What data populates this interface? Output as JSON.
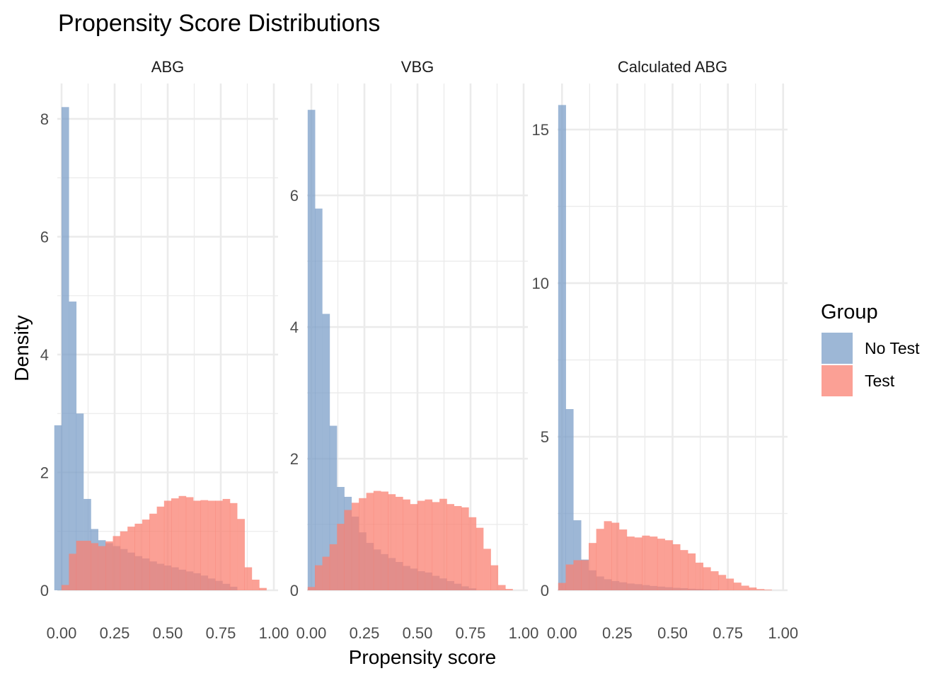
{
  "title": "Propensity Score Distributions",
  "xlabel": "Propensity score",
  "ylabel": "Density",
  "legend": {
    "title": "Group",
    "placement": "right",
    "items": [
      {
        "label": "No Test",
        "color": "#7c9fc8"
      },
      {
        "label": "Test",
        "color": "#fa8072"
      }
    ]
  },
  "colors": {
    "no_test": "#7c9fc8",
    "test": "#fa8072",
    "grid": "#ebebeb",
    "text": "#4d4d4d"
  },
  "chart_data": {
    "type": "bar",
    "layout": "facets",
    "bin_width": 0.0345,
    "x_ticks": [
      "0.00",
      "0.25",
      "0.50",
      "0.75",
      "1.00"
    ],
    "facets": [
      {
        "title": "ABG",
        "xlim": [
          -0.02,
          1.02
        ],
        "ylim": [
          0,
          8.6
        ],
        "y_ticks": [
          0,
          2,
          4,
          6,
          8
        ],
        "series": [
          {
            "name": "No Test",
            "x": [
              -0.017,
              0.017,
              0.052,
              0.086,
              0.121,
              0.155,
              0.19,
              0.224,
              0.259,
              0.293,
              0.328,
              0.362,
              0.397,
              0.431,
              0.466,
              0.5,
              0.534,
              0.569,
              0.603,
              0.638,
              0.672,
              0.707,
              0.741,
              0.776,
              0.81
            ],
            "values": [
              2.8,
              8.2,
              4.9,
              3.0,
              1.55,
              1.04,
              0.85,
              0.8,
              0.75,
              0.7,
              0.64,
              0.58,
              0.54,
              0.49,
              0.45,
              0.42,
              0.39,
              0.35,
              0.32,
              0.29,
              0.25,
              0.2,
              0.16,
              0.11,
              0.06
            ]
          },
          {
            "name": "Test",
            "x": [
              0.017,
              0.052,
              0.086,
              0.121,
              0.155,
              0.19,
              0.224,
              0.259,
              0.293,
              0.328,
              0.362,
              0.397,
              0.431,
              0.466,
              0.5,
              0.534,
              0.569,
              0.603,
              0.638,
              0.672,
              0.707,
              0.741,
              0.776,
              0.81,
              0.845,
              0.879,
              0.914,
              0.948
            ],
            "values": [
              0.09,
              0.62,
              0.84,
              0.84,
              0.8,
              0.75,
              0.83,
              0.92,
              1.0,
              1.08,
              1.13,
              1.2,
              1.3,
              1.42,
              1.52,
              1.56,
              1.6,
              1.58,
              1.52,
              1.53,
              1.52,
              1.52,
              1.55,
              1.48,
              1.21,
              0.39,
              0.18,
              0.04
            ]
          }
        ]
      },
      {
        "title": "VBG",
        "xlim": [
          -0.02,
          1.02
        ],
        "ylim": [
          0,
          7.7
        ],
        "y_ticks": [
          0,
          2,
          4,
          6
        ],
        "series": [
          {
            "name": "No Test",
            "x": [
              0.0,
              0.034,
              0.069,
              0.103,
              0.138,
              0.172,
              0.207,
              0.241,
              0.276,
              0.31,
              0.345,
              0.379,
              0.414,
              0.448,
              0.483,
              0.517,
              0.552,
              0.586,
              0.621,
              0.655,
              0.69,
              0.724,
              0.759
            ],
            "values": [
              7.3,
              5.8,
              4.2,
              2.5,
              1.57,
              1.42,
              1.12,
              0.88,
              0.72,
              0.62,
              0.55,
              0.49,
              0.43,
              0.37,
              0.33,
              0.29,
              0.27,
              0.22,
              0.18,
              0.14,
              0.1,
              0.06,
              0.03
            ]
          },
          {
            "name": "Test",
            "x": [
              0.0,
              0.034,
              0.069,
              0.103,
              0.138,
              0.172,
              0.207,
              0.241,
              0.276,
              0.31,
              0.345,
              0.379,
              0.414,
              0.448,
              0.483,
              0.517,
              0.552,
              0.586,
              0.621,
              0.655,
              0.69,
              0.724,
              0.759,
              0.793,
              0.828,
              0.862,
              0.897,
              0.931
            ],
            "values": [
              0.05,
              0.38,
              0.51,
              0.7,
              1.01,
              1.22,
              1.33,
              1.4,
              1.48,
              1.51,
              1.5,
              1.46,
              1.42,
              1.38,
              1.31,
              1.36,
              1.38,
              1.34,
              1.39,
              1.31,
              1.28,
              1.26,
              1.11,
              0.95,
              0.63,
              0.38,
              0.08,
              0.02
            ]
          }
        ]
      },
      {
        "title": "Calculated ABG",
        "xlim": [
          -0.02,
          1.02
        ],
        "ylim": [
          0,
          16.5
        ],
        "y_ticks": [
          0,
          5,
          10,
          15
        ],
        "series": [
          {
            "name": "No Test",
            "x": [
              0.0,
              0.034,
              0.069,
              0.103,
              0.138,
              0.172,
              0.207,
              0.241,
              0.276,
              0.31,
              0.345,
              0.379,
              0.414,
              0.448,
              0.483,
              0.517,
              0.552,
              0.586,
              0.621,
              0.655,
              0.69
            ],
            "values": [
              15.8,
              5.9,
              2.28,
              1.0,
              0.65,
              0.45,
              0.36,
              0.3,
              0.26,
              0.22,
              0.2,
              0.17,
              0.14,
              0.12,
              0.1,
              0.08,
              0.07,
              0.05,
              0.04,
              0.03,
              0.02
            ]
          },
          {
            "name": "Test",
            "x": [
              0.0,
              0.034,
              0.069,
              0.103,
              0.138,
              0.172,
              0.207,
              0.241,
              0.276,
              0.31,
              0.345,
              0.379,
              0.414,
              0.448,
              0.483,
              0.517,
              0.552,
              0.586,
              0.621,
              0.655,
              0.69,
              0.724,
              0.759,
              0.793,
              0.828,
              0.862,
              0.897,
              0.931
            ],
            "values": [
              0.24,
              0.84,
              0.98,
              0.98,
              1.54,
              2.0,
              2.25,
              2.2,
              1.98,
              1.75,
              1.72,
              1.78,
              1.75,
              1.68,
              1.63,
              1.5,
              1.31,
              1.2,
              0.9,
              0.75,
              0.62,
              0.5,
              0.38,
              0.25,
              0.15,
              0.09,
              0.04,
              0.02
            ]
          }
        ]
      }
    ]
  }
}
